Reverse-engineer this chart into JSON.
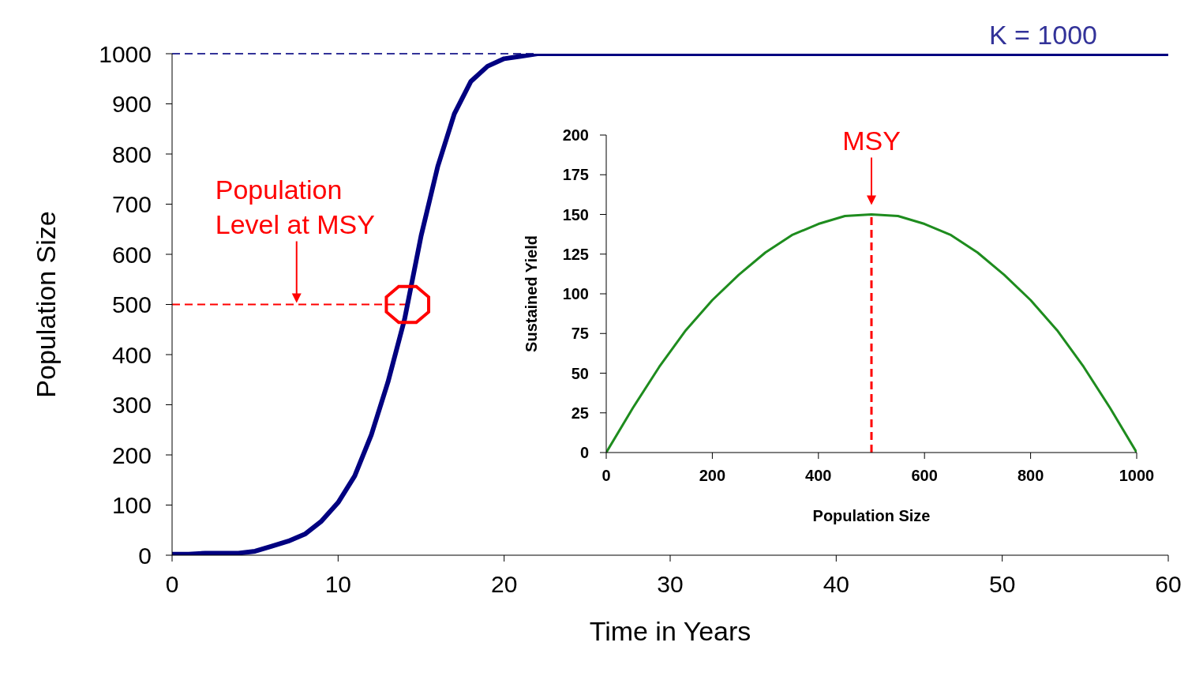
{
  "chart_data": [
    {
      "type": "line",
      "xlabel": "Time in Years",
      "ylabel": "Population Size",
      "x": [
        0,
        1,
        2,
        3,
        4,
        5,
        6,
        7,
        8,
        9,
        10,
        11,
        12,
        13,
        14,
        15,
        16,
        17,
        18,
        19,
        20,
        21,
        22,
        30,
        40,
        50,
        60
      ],
      "series": [
        {
          "color": "#000080",
          "values": [
            2,
            2,
            4,
            4,
            4,
            8,
            18,
            28,
            42,
            68,
            105,
            158,
            240,
            345,
            470,
            637,
            775,
            880,
            945,
            975,
            990,
            995,
            1000,
            1000,
            1000,
            1000,
            1000
          ]
        }
      ],
      "xlim": [
        0,
        60
      ],
      "xticks": [
        0,
        10,
        20,
        30,
        40,
        50,
        60
      ],
      "ylim": [
        0,
        1000
      ],
      "yticks": [
        0,
        100,
        200,
        300,
        400,
        500,
        600,
        700,
        800,
        900,
        1000
      ],
      "marker": "none",
      "line_style": "solid",
      "ref_lines": [
        {
          "axis": "y",
          "value": 1000,
          "label": "K = 1000",
          "color": "#333399",
          "line_style": "dashed"
        },
        {
          "axis": "y",
          "value": 500,
          "color": "#ff0000",
          "line_style": "dashed"
        }
      ],
      "annotations": [
        {
          "text": "Population Level at MSY",
          "x": 7.5,
          "y": 500
        }
      ]
    },
    {
      "type": "line",
      "xlabel": "Population Size",
      "ylabel": "Sustained Yield",
      "x": [
        0,
        50,
        100,
        150,
        200,
        250,
        300,
        350,
        400,
        450,
        500,
        550,
        600,
        650,
        700,
        750,
        800,
        850,
        900,
        950,
        1000
      ],
      "series": [
        {
          "color": "#1e8c1e",
          "values": [
            0,
            28,
            54,
            77,
            96,
            112,
            126,
            137,
            144,
            149,
            150,
            149,
            144,
            137,
            126,
            112,
            96,
            77,
            54,
            28,
            0
          ]
        }
      ],
      "xlim": [
        0,
        1000
      ],
      "xticks": [
        0,
        200,
        400,
        600,
        800,
        1000
      ],
      "ylim": [
        0,
        200
      ],
      "yticks": [
        0,
        25,
        50,
        75,
        100,
        125,
        150,
        175,
        200
      ],
      "marker": "none",
      "line_style": "solid",
      "ref_lines": [
        {
          "axis": "x",
          "value": 500,
          "color": "#ff0000",
          "line_style": "dashed"
        }
      ],
      "annotations": [
        {
          "text": "MSY",
          "x": 500,
          "y": 150
        }
      ]
    }
  ]
}
